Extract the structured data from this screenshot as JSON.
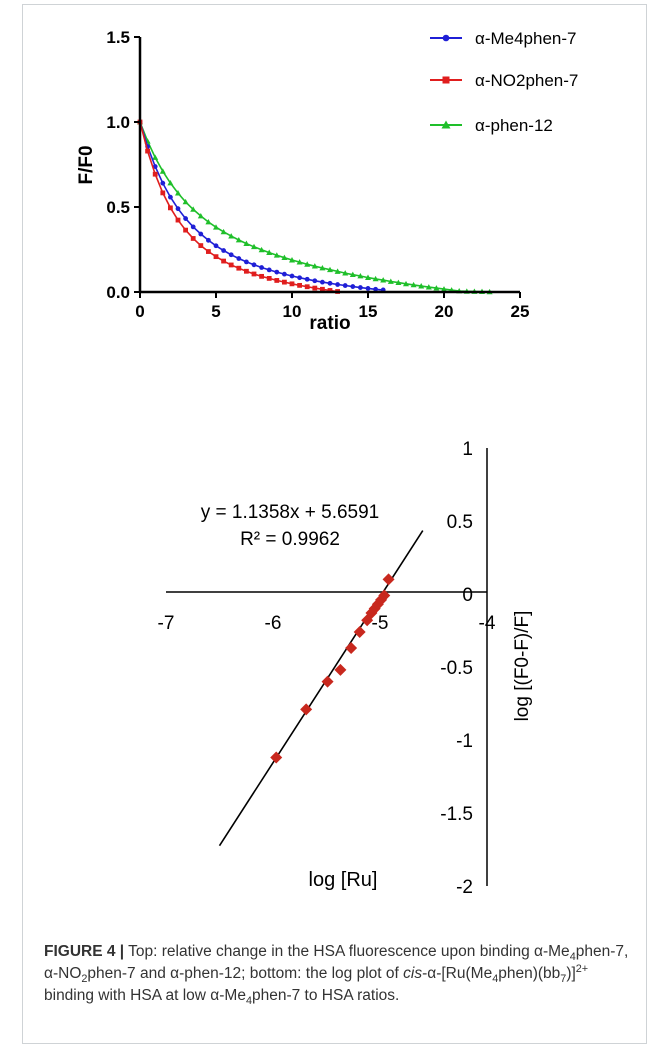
{
  "chart_data": [
    {
      "type": "line",
      "title": "",
      "xlabel": "ratio",
      "ylabel": "F/F0",
      "xlim": [
        0,
        25
      ],
      "ylim": [
        0,
        1.5
      ],
      "x_ticks": [
        "0",
        "5",
        "10",
        "15",
        "20",
        "25"
      ],
      "y_ticks": [
        "0.0",
        "0.5",
        "1.0",
        "1.5"
      ],
      "legend_position": "top-right",
      "series": [
        {
          "name": "α-Me4phen-7",
          "color": "#1f1fd6",
          "marker": "circle",
          "x": [
            0,
            0.5,
            1,
            1.5,
            2,
            2.5,
            3,
            3.5,
            4,
            4.5,
            5,
            5.5,
            6,
            6.5,
            7,
            7.5,
            8,
            8.5,
            9,
            9.5,
            10,
            10.5,
            11,
            11.5,
            12,
            12.5,
            13,
            13.5,
            14,
            14.5,
            15,
            15.5,
            16
          ],
          "y": [
            1.0,
            0.856,
            0.738,
            0.64,
            0.558,
            0.49,
            0.432,
            0.383,
            0.341,
            0.304,
            0.272,
            0.244,
            0.219,
            0.197,
            0.177,
            0.16,
            0.144,
            0.13,
            0.117,
            0.105,
            0.094,
            0.084,
            0.075,
            0.066,
            0.058,
            0.051,
            0.044,
            0.038,
            0.032,
            0.026,
            0.021,
            0.016,
            0.012
          ]
        },
        {
          "name": "α-NO2phen-7",
          "color": "#e01e1e",
          "marker": "square",
          "x": [
            0,
            0.5,
            1,
            1.5,
            2,
            2.5,
            3,
            3.5,
            4,
            4.5,
            5,
            5.5,
            6,
            6.5,
            7,
            7.5,
            8,
            8.5,
            9,
            9.5,
            10,
            10.5,
            11,
            11.5,
            12,
            12.5,
            13
          ],
          "y": [
            1.0,
            0.829,
            0.693,
            0.583,
            0.495,
            0.423,
            0.364,
            0.315,
            0.273,
            0.238,
            0.208,
            0.182,
            0.159,
            0.14,
            0.122,
            0.106,
            0.092,
            0.08,
            0.068,
            0.058,
            0.048,
            0.039,
            0.031,
            0.023,
            0.016,
            0.009,
            0.003
          ]
        },
        {
          "name": "α-phen-12",
          "color": "#1fbf2a",
          "marker": "triangle",
          "x": [
            0,
            0.5,
            1,
            1.5,
            2,
            2.5,
            3,
            3.5,
            4,
            4.5,
            5,
            5.5,
            6,
            6.5,
            7,
            7.5,
            8,
            8.5,
            9,
            9.5,
            10,
            10.5,
            11,
            11.5,
            12,
            12.5,
            13,
            13.5,
            14,
            14.5,
            15,
            15.5,
            16,
            16.5,
            17,
            17.5,
            18,
            18.5,
            19,
            19.5,
            20,
            20.5,
            21,
            21.5,
            22,
            22.5,
            23
          ],
          "y": [
            1.0,
            0.887,
            0.791,
            0.71,
            0.641,
            0.582,
            0.53,
            0.486,
            0.447,
            0.412,
            0.381,
            0.354,
            0.329,
            0.306,
            0.285,
            0.266,
            0.248,
            0.232,
            0.216,
            0.202,
            0.188,
            0.176,
            0.163,
            0.152,
            0.141,
            0.131,
            0.121,
            0.111,
            0.102,
            0.094,
            0.085,
            0.077,
            0.07,
            0.062,
            0.055,
            0.048,
            0.042,
            0.035,
            0.029,
            0.023,
            0.017,
            0.011,
            0.006,
            0.004,
            0.003,
            0.002,
            0.001
          ]
        }
      ]
    },
    {
      "type": "scatter",
      "xlabel": "log [Ru]",
      "ylabel": "log [(F0-F)/F]",
      "xlim": [
        -7,
        -4
      ],
      "ylim": [
        -2,
        1
      ],
      "x_ticks": [
        "-7",
        "-6",
        "-5",
        "-4"
      ],
      "y_ticks": [
        "1",
        "0.5",
        "0",
        "-0.5",
        "-1",
        "-1.5",
        "-2"
      ],
      "equation": "y = 1.1358x + 5.6591",
      "r_squared": "R² = 0.9962",
      "marker_color": "#c8281e",
      "line_color": "#000000",
      "fit": {
        "slope": 1.1358,
        "intercept": 5.6591,
        "x_range": [
          -6.5,
          -4.6
        ]
      },
      "points": {
        "x": [
          -5.97,
          -5.69,
          -5.49,
          -5.37,
          -5.27,
          -5.19,
          -5.12,
          -5.08,
          -5.05,
          -5.02,
          -4.99,
          -4.96,
          -4.92
        ],
        "y": [
          -1.12,
          -0.79,
          -0.6,
          -0.52,
          -0.37,
          -0.26,
          -0.18,
          -0.13,
          -0.1,
          -0.07,
          -0.04,
          -0.01,
          0.1
        ]
      }
    }
  ],
  "caption": {
    "lead": "FIGURE 4 |",
    "text_1": " Top: relative change in the HSA fluorescence upon binding α-Me",
    "sub_1": "4",
    "text_2": "phen-7, α-NO",
    "sub_2": "2",
    "text_3": "phen-7 and α-phen-12; bottom: the log plot of ",
    "italic": "cis",
    "text_4": "-α-[Ru(Me",
    "sub_3": "4",
    "text_5": "phen)(bb",
    "sub_4": "7",
    "text_6": ")]",
    "sup_1": "2+",
    "text_7": " binding with HSA at low α-Me",
    "sub_5": "4",
    "text_8": "phen-7 to HSA ratios."
  }
}
